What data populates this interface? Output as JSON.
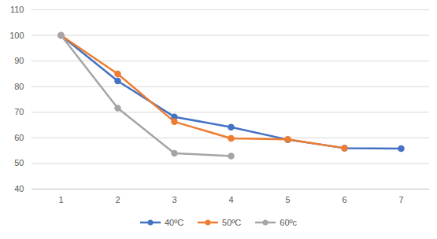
{
  "chart_data": {
    "type": "line",
    "categories": [
      "1",
      "2",
      "3",
      "4",
      "5",
      "6",
      "7"
    ],
    "series": [
      {
        "name": "40ºC",
        "color": "#4472c4",
        "values": [
          100,
          82.2,
          68.2,
          64.2,
          59.3,
          56,
          55.8
        ]
      },
      {
        "name": "50ºC",
        "color": "#ed7d31",
        "values": [
          100,
          85,
          66.3,
          59.8,
          59.4,
          56,
          null
        ]
      },
      {
        "name": "60ºc",
        "color": "#a5a5a5",
        "values": [
          100,
          71.6,
          54,
          52.9,
          null,
          null,
          null
        ]
      }
    ],
    "ylim": [
      40,
      110
    ],
    "yticks": [
      40,
      50,
      60,
      70,
      80,
      90,
      100,
      110
    ],
    "grid": true,
    "legend": "bottom",
    "marker": "circle",
    "line_style": "solid"
  }
}
